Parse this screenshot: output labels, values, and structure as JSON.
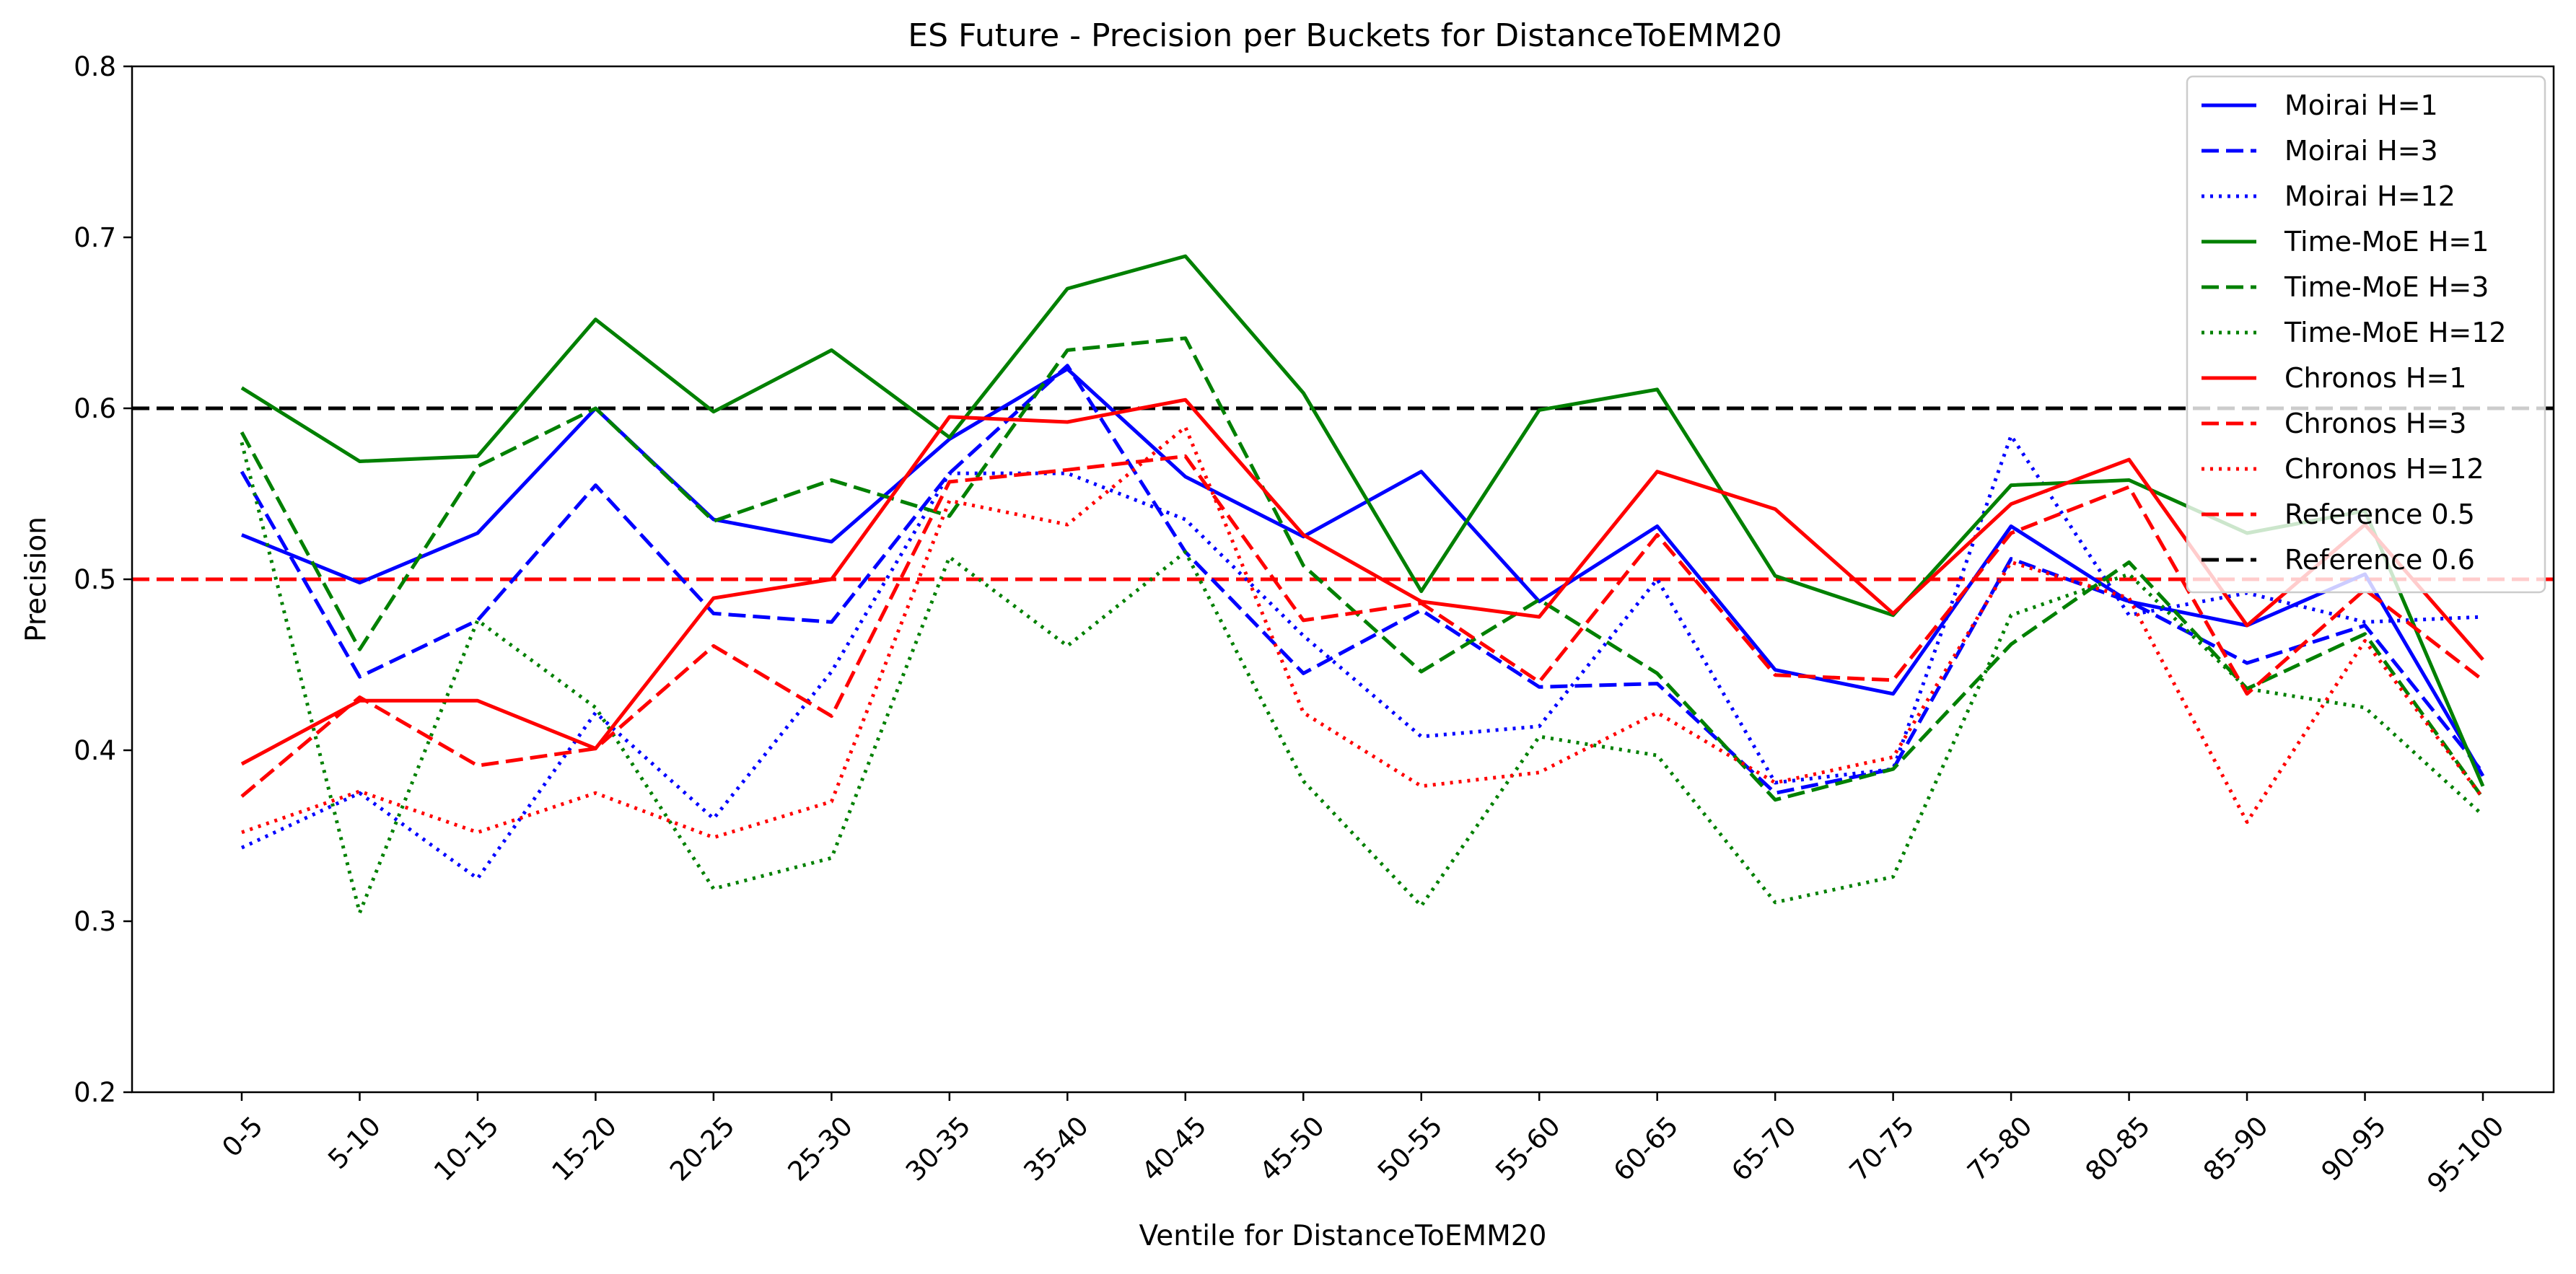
{
  "chart_data": {
    "type": "line",
    "title": "ES Future - Precision per Buckets for DistanceToEMM20",
    "xlabel": "Ventile for DistanceToEMM20",
    "ylabel": "Precision",
    "ylim": [
      0.2,
      0.8
    ],
    "yticks": [
      "0.2",
      "0.3",
      "0.4",
      "0.5",
      "0.6",
      "0.7",
      "0.8"
    ],
    "grid": false,
    "legend_position": "top-right",
    "categories": [
      "0-5",
      "5-10",
      "10-15",
      "15-20",
      "20-25",
      "25-30",
      "30-35",
      "35-40",
      "40-45",
      "45-50",
      "50-55",
      "55-60",
      "60-65",
      "65-70",
      "70-75",
      "75-80",
      "80-85",
      "85-90",
      "90-95",
      "95-100"
    ],
    "series": [
      {
        "name": "Moirai H=1",
        "color": "#0000ff",
        "style": "solid",
        "values": [
          0.526,
          0.498,
          0.527,
          0.6,
          0.535,
          0.522,
          0.582,
          0.623,
          0.56,
          0.525,
          0.563,
          0.487,
          0.531,
          0.447,
          0.433,
          0.531,
          0.487,
          0.473,
          0.503,
          0.385
        ]
      },
      {
        "name": "Moirai H=3",
        "color": "#0000ff",
        "style": "dashed",
        "values": [
          0.563,
          0.443,
          0.476,
          0.555,
          0.48,
          0.475,
          0.562,
          0.625,
          0.516,
          0.445,
          0.482,
          0.437,
          0.439,
          0.375,
          0.389,
          0.512,
          0.487,
          0.451,
          0.473,
          0.387
        ]
      },
      {
        "name": "Moirai H=12",
        "color": "#0000ff",
        "style": "dotted",
        "values": [
          0.343,
          0.375,
          0.325,
          0.422,
          0.36,
          0.446,
          0.562,
          0.562,
          0.535,
          0.467,
          0.408,
          0.414,
          0.5,
          0.381,
          0.389,
          0.584,
          0.479,
          0.492,
          0.475,
          0.478
        ]
      },
      {
        "name": "Time-MoE H=1",
        "color": "#008000",
        "style": "solid",
        "values": [
          0.612,
          0.569,
          0.572,
          0.652,
          0.598,
          0.634,
          0.583,
          0.67,
          0.689,
          0.609,
          0.493,
          0.599,
          0.611,
          0.502,
          0.479,
          0.555,
          0.558,
          0.527,
          0.54,
          0.379
        ]
      },
      {
        "name": "Time-MoE H=3",
        "color": "#008000",
        "style": "dashed",
        "values": [
          0.586,
          0.459,
          0.566,
          0.6,
          0.534,
          0.558,
          0.537,
          0.634,
          0.641,
          0.508,
          0.446,
          0.488,
          0.445,
          0.371,
          0.389,
          0.462,
          0.51,
          0.436,
          0.468,
          0.372
        ]
      },
      {
        "name": "Time-MoE H=12",
        "color": "#008000",
        "style": "dotted",
        "values": [
          0.58,
          0.305,
          0.476,
          0.425,
          0.319,
          0.337,
          0.513,
          0.461,
          0.516,
          0.382,
          0.309,
          0.408,
          0.397,
          0.311,
          0.326,
          0.479,
          0.503,
          0.436,
          0.425,
          0.362
        ]
      },
      {
        "name": "Chronos H=1",
        "color": "#ff0000",
        "style": "solid",
        "values": [
          0.392,
          0.429,
          0.429,
          0.401,
          0.489,
          0.5,
          0.595,
          0.592,
          0.605,
          0.526,
          0.487,
          0.478,
          0.563,
          0.541,
          0.48,
          0.544,
          0.57,
          0.473,
          0.532,
          0.453
        ]
      },
      {
        "name": "Chronos H=3",
        "color": "#ff0000",
        "style": "dashed",
        "values": [
          0.373,
          0.431,
          0.391,
          0.401,
          0.461,
          0.42,
          0.557,
          0.564,
          0.572,
          0.476,
          0.486,
          0.44,
          0.526,
          0.444,
          0.441,
          0.527,
          0.554,
          0.433,
          0.494,
          0.441
        ]
      },
      {
        "name": "Chronos H=12",
        "color": "#ff0000",
        "style": "dotted",
        "values": [
          0.352,
          0.376,
          0.352,
          0.375,
          0.349,
          0.37,
          0.546,
          0.532,
          0.589,
          0.422,
          0.379,
          0.387,
          0.422,
          0.381,
          0.396,
          0.51,
          0.489,
          0.358,
          0.464,
          0.372
        ]
      }
    ],
    "reference_lines": [
      {
        "name": "Reference 0.5",
        "color": "#ff0000",
        "style": "dashed",
        "value": 0.5
      },
      {
        "name": "Reference 0.6",
        "color": "#000000",
        "style": "dashed",
        "value": 0.6
      }
    ]
  }
}
